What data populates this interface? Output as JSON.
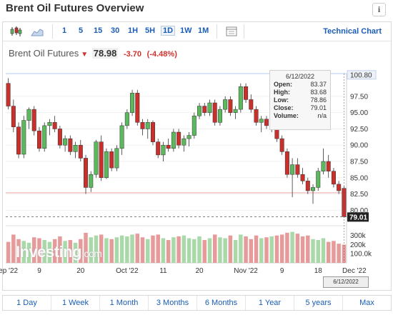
{
  "header": {
    "title": "Brent Oil Futures Overview",
    "info_label": "i"
  },
  "toolbar": {
    "timeframes": [
      "1",
      "5",
      "15",
      "30",
      "1H",
      "5H",
      "1D",
      "1W",
      "1M"
    ],
    "active_timeframe": "1D",
    "technical_chart_label": "Technical Chart"
  },
  "quote": {
    "name": "Brent Oil Futures",
    "price": "78.98",
    "change": "-3.70",
    "change_pct": "(-4.48%)"
  },
  "tooltip": {
    "date": "6/12/2022",
    "open_label": "Open:",
    "open": "83.37",
    "high_label": "High:",
    "high": "83.68",
    "low_label": "Low:",
    "low": "78.86",
    "close_label": "Close:",
    "close": "79.01",
    "volume_label": "Volume:",
    "volume": "n/a"
  },
  "watermark": {
    "brand": "Investing",
    "domain": ".com"
  },
  "date_badge": "6/12/2022",
  "periods": [
    "1 Day",
    "1 Week",
    "1 Month",
    "3 Months",
    "6 Months",
    "1 Year",
    "5 years",
    "Max"
  ],
  "colors": {
    "up": "#5cb85c",
    "down": "#c9302c",
    "link": "#1a5db6"
  },
  "chart_data": {
    "type": "candlestick",
    "price_axis_labels": [
      "100.80",
      "97.50",
      "95.00",
      "92.50",
      "90.00",
      "87.50",
      "85.00",
      "82.50",
      "80.00"
    ],
    "price_ticks": [
      100.8,
      97.5,
      95.0,
      92.5,
      90.0,
      87.5,
      85.0,
      82.5,
      80.0
    ],
    "last_price_label": "79.01",
    "last_price": 79.01,
    "reference_price": 82.68,
    "ylim": [
      78.5,
      101.0
    ],
    "volume_axis_labels": [
      "300k",
      "200k",
      "100.0k"
    ],
    "volume_ticks": [
      300000,
      200000,
      100000
    ],
    "volume_max": 360000,
    "x_labels": [
      {
        "label": "ep '22",
        "i": 0
      },
      {
        "label": "9",
        "i": 6
      },
      {
        "label": "20",
        "i": 14
      },
      {
        "label": "Oct '22",
        "i": 23
      },
      {
        "label": "11",
        "i": 30
      },
      {
        "label": "20",
        "i": 37
      },
      {
        "label": "Nov '22",
        "i": 46
      },
      {
        "label": "9",
        "i": 53
      },
      {
        "label": "18",
        "i": 60
      },
      {
        "label": "Dec '22",
        "i": 67
      }
    ],
    "candles": [
      [
        99.5,
        100.3,
        95.5,
        96.0
      ],
      [
        96.0,
        97.0,
        92.0,
        92.8
      ],
      [
        92.8,
        93.5,
        88.0,
        88.6
      ],
      [
        88.6,
        94.5,
        88.0,
        93.8
      ],
      [
        93.8,
        95.8,
        92.5,
        95.5
      ],
      [
        95.5,
        96.0,
        91.5,
        92.2
      ],
      [
        92.2,
        92.8,
        89.0,
        89.5
      ],
      [
        89.5,
        93.5,
        89.0,
        93.0
      ],
      [
        93.0,
        94.0,
        91.5,
        93.5
      ],
      [
        93.5,
        94.5,
        92.0,
        92.5
      ],
      [
        92.5,
        93.0,
        89.5,
        90.0
      ],
      [
        90.0,
        91.5,
        89.0,
        91.0
      ],
      [
        91.0,
        91.5,
        88.5,
        89.0
      ],
      [
        89.0,
        90.5,
        88.0,
        90.0
      ],
      [
        90.0,
        90.8,
        87.5,
        88.0
      ],
      [
        88.0,
        88.5,
        82.5,
        83.5
      ],
      [
        83.5,
        86.0,
        82.8,
        85.5
      ],
      [
        85.5,
        90.8,
        85.0,
        90.5
      ],
      [
        90.5,
        91.5,
        84.5,
        85.0
      ],
      [
        85.0,
        89.5,
        84.8,
        89.0
      ],
      [
        89.0,
        89.5,
        86.0,
        86.5
      ],
      [
        86.5,
        90.0,
        86.0,
        89.5
      ],
      [
        89.5,
        93.5,
        88.5,
        93.0
      ],
      [
        93.0,
        95.5,
        92.5,
        95.0
      ],
      [
        95.0,
        98.5,
        94.5,
        98.0
      ],
      [
        98.0,
        98.5,
        93.0,
        93.5
      ],
      [
        93.5,
        94.0,
        91.5,
        92.5
      ],
      [
        92.5,
        94.0,
        91.0,
        93.5
      ],
      [
        93.5,
        93.8,
        90.0,
        90.5
      ],
      [
        90.5,
        91.0,
        88.0,
        88.5
      ],
      [
        88.5,
        90.5,
        87.5,
        90.0
      ],
      [
        90.0,
        91.0,
        89.0,
        89.5
      ],
      [
        89.5,
        92.5,
        89.0,
        92.0
      ],
      [
        92.0,
        92.5,
        89.5,
        90.0
      ],
      [
        90.0,
        91.5,
        89.0,
        91.0
      ],
      [
        91.0,
        92.0,
        89.8,
        91.5
      ],
      [
        91.5,
        95.0,
        91.0,
        94.5
      ],
      [
        94.5,
        96.5,
        94.0,
        96.0
      ],
      [
        96.0,
        96.5,
        94.5,
        95.0
      ],
      [
        95.0,
        97.0,
        94.5,
        96.5
      ],
      [
        96.5,
        97.0,
        93.0,
        93.5
      ],
      [
        93.5,
        96.0,
        93.0,
        95.5
      ],
      [
        95.5,
        97.5,
        95.0,
        97.0
      ],
      [
        97.0,
        97.5,
        94.5,
        95.0
      ],
      [
        95.0,
        96.0,
        94.0,
        95.5
      ],
      [
        95.5,
        99.5,
        95.0,
        99.0
      ],
      [
        99.0,
        99.5,
        96.5,
        97.0
      ],
      [
        97.0,
        97.8,
        95.0,
        95.5
      ],
      [
        95.5,
        96.0,
        93.0,
        93.5
      ],
      [
        93.5,
        94.5,
        92.0,
        94.0
      ],
      [
        94.0,
        94.5,
        92.5,
        93.0
      ],
      [
        93.0,
        94.0,
        92.0,
        93.5
      ],
      [
        93.5,
        94.0,
        90.5,
        91.0
      ],
      [
        91.0,
        91.5,
        88.5,
        89.0
      ],
      [
        89.0,
        89.5,
        85.0,
        85.5
      ],
      [
        85.5,
        88.0,
        82.0,
        87.0
      ],
      [
        87.0,
        88.0,
        85.0,
        85.5
      ],
      [
        85.5,
        86.5,
        84.0,
        84.5
      ],
      [
        84.5,
        85.0,
        82.5,
        83.0
      ],
      [
        83.0,
        84.0,
        81.0,
        83.5
      ],
      [
        83.5,
        86.5,
        83.0,
        86.0
      ],
      [
        86.0,
        89.5,
        85.5,
        87.5
      ],
      [
        87.5,
        88.5,
        85.0,
        86.0
      ],
      [
        86.0,
        86.5,
        83.5,
        84.0
      ],
      [
        84.0,
        84.5,
        82.5,
        83.0
      ],
      [
        83.37,
        83.68,
        78.86,
        79.01
      ]
    ],
    "volumes": [
      230000,
      310000,
      260000,
      240000,
      220000,
      280000,
      270000,
      250000,
      230000,
      260000,
      290000,
      240000,
      250000,
      220000,
      260000,
      330000,
      280000,
      300000,
      310000,
      270000,
      260000,
      280000,
      300000,
      290000,
      310000,
      320000,
      280000,
      260000,
      300000,
      310000,
      270000,
      250000,
      280000,
      290000,
      300000,
      270000,
      260000,
      290000,
      250000,
      270000,
      310000,
      280000,
      270000,
      300000,
      250000,
      310000,
      290000,
      260000,
      300000,
      270000,
      280000,
      290000,
      300000,
      310000,
      330000,
      340000,
      320000,
      290000,
      300000,
      260000,
      250000,
      270000,
      230000,
      240000,
      210000,
      200000
    ]
  }
}
